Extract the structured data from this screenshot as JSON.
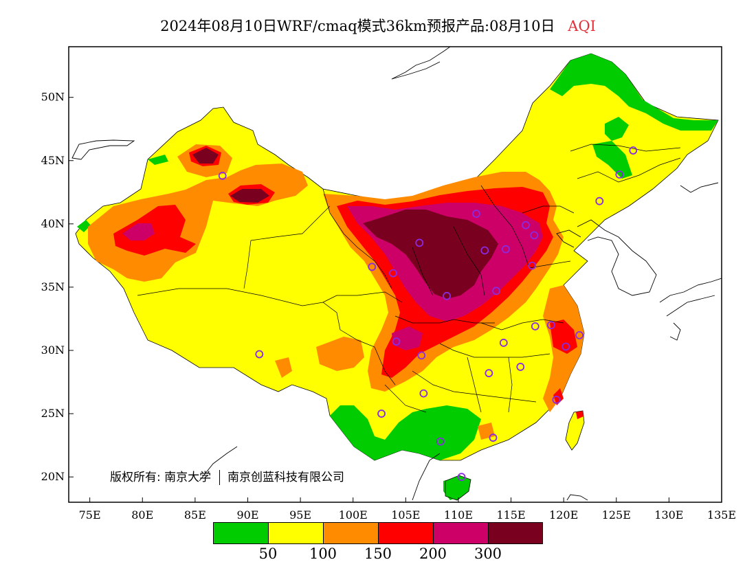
{
  "title": {
    "main": "2024年08月10日WRF/cmaq模式36km预报产品:08月10日",
    "variable": "AQI"
  },
  "credit": {
    "label": "版权所有:",
    "org1": "南京大学",
    "org2": "南京创蓝科技有限公司"
  },
  "axes": {
    "lat_ticks": [
      "50N",
      "45N",
      "40N",
      "35N",
      "30N",
      "25N",
      "20N"
    ],
    "lon_ticks": [
      "75E",
      "80E",
      "85E",
      "90E",
      "95E",
      "100E",
      "105E",
      "110E",
      "115E",
      "120E",
      "125E",
      "130E",
      "135E"
    ],
    "lat_range": [
      18,
      54
    ],
    "lon_range": [
      73,
      135
    ]
  },
  "legend": {
    "colors": [
      "#00cc00",
      "#ffff00",
      "#ff8c00",
      "#ff0000",
      "#cc0066",
      "#7a0020"
    ],
    "thresholds": [
      "50",
      "100",
      "150",
      "200",
      "300"
    ]
  },
  "stations": [
    {
      "lon": 87.6,
      "lat": 43.8
    },
    {
      "lon": 91.1,
      "lat": 29.7
    },
    {
      "lon": 101.8,
      "lat": 36.6
    },
    {
      "lon": 103.8,
      "lat": 36.1
    },
    {
      "lon": 106.3,
      "lat": 38.5
    },
    {
      "lon": 111.7,
      "lat": 40.8
    },
    {
      "lon": 112.5,
      "lat": 37.9
    },
    {
      "lon": 114.5,
      "lat": 38.0
    },
    {
      "lon": 116.4,
      "lat": 39.9
    },
    {
      "lon": 117.2,
      "lat": 39.1
    },
    {
      "lon": 117.0,
      "lat": 36.7
    },
    {
      "lon": 113.6,
      "lat": 34.7
    },
    {
      "lon": 108.9,
      "lat": 34.3
    },
    {
      "lon": 104.1,
      "lat": 30.7
    },
    {
      "lon": 106.5,
      "lat": 29.6
    },
    {
      "lon": 106.7,
      "lat": 26.6
    },
    {
      "lon": 102.7,
      "lat": 25.0
    },
    {
      "lon": 108.3,
      "lat": 22.8
    },
    {
      "lon": 113.3,
      "lat": 23.1
    },
    {
      "lon": 110.3,
      "lat": 20.0
    },
    {
      "lon": 112.9,
      "lat": 28.2
    },
    {
      "lon": 114.3,
      "lat": 30.6
    },
    {
      "lon": 115.9,
      "lat": 28.7
    },
    {
      "lon": 117.3,
      "lat": 31.9
    },
    {
      "lon": 118.8,
      "lat": 32.0
    },
    {
      "lon": 120.2,
      "lat": 30.3
    },
    {
      "lon": 121.5,
      "lat": 31.2
    },
    {
      "lon": 119.3,
      "lat": 26.1
    },
    {
      "lon": 123.4,
      "lat": 41.8
    },
    {
      "lon": 125.3,
      "lat": 43.9
    },
    {
      "lon": 126.6,
      "lat": 45.8
    }
  ]
}
